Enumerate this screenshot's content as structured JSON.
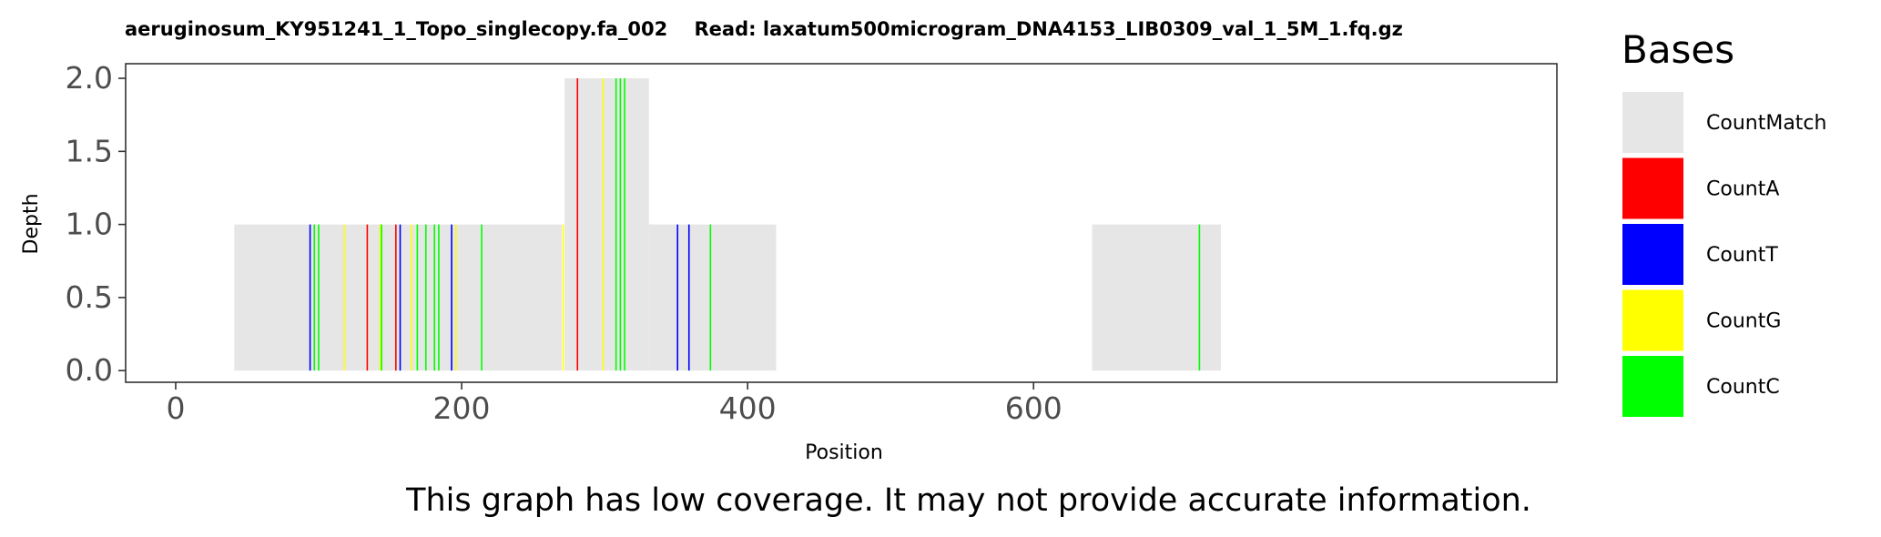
{
  "chart_data": {
    "type": "bar",
    "title": "aeruginosum_KY951241_1_Topo_singlecopy.fa_002    Read: laxatum500microgram_DNA4153_LIB0309_val_1_5M_1.fq.gz",
    "xlabel": "Position",
    "ylabel": "Depth",
    "xlim": [
      -35,
      966
    ],
    "ylim": [
      -0.08,
      2.1
    ],
    "x_ticks": [
      0,
      200,
      400,
      600
    ],
    "y_ticks": [
      0.0,
      0.5,
      1.0,
      1.5,
      2.0
    ],
    "x_tick_labels": [
      "0",
      "200",
      "400",
      "600"
    ],
    "y_tick_labels": [
      "0.0",
      "0.5",
      "1.0",
      "1.5",
      "2.0"
    ],
    "grid": false,
    "legend_position": "right",
    "coverage": [
      {
        "start": 41,
        "end": 270,
        "depth": 1
      },
      {
        "start": 272,
        "end": 331,
        "depth": 2
      },
      {
        "start": 331,
        "end": 420,
        "depth": 1
      },
      {
        "start": 641,
        "end": 731,
        "depth": 1
      }
    ],
    "mismatches": [
      {
        "pos": 94,
        "base": "T",
        "depth": 1
      },
      {
        "pos": 97,
        "base": "C",
        "depth": 1
      },
      {
        "pos": 100,
        "base": "C",
        "depth": 1
      },
      {
        "pos": 118,
        "base": "G",
        "depth": 1
      },
      {
        "pos": 134,
        "base": "A",
        "depth": 1
      },
      {
        "pos": 143,
        "base": "G",
        "depth": 1
      },
      {
        "pos": 144,
        "base": "C",
        "depth": 1
      },
      {
        "pos": 154,
        "base": "A",
        "depth": 1
      },
      {
        "pos": 157,
        "base": "T",
        "depth": 1
      },
      {
        "pos": 165,
        "base": "G",
        "depth": 1
      },
      {
        "pos": 169,
        "base": "C",
        "depth": 1
      },
      {
        "pos": 175,
        "base": "C",
        "depth": 1
      },
      {
        "pos": 181,
        "base": "C",
        "depth": 1
      },
      {
        "pos": 184,
        "base": "C",
        "depth": 1
      },
      {
        "pos": 193,
        "base": "T",
        "depth": 1
      },
      {
        "pos": 196,
        "base": "G",
        "depth": 1
      },
      {
        "pos": 214,
        "base": "C",
        "depth": 1
      },
      {
        "pos": 271,
        "base": "G",
        "depth": 1
      },
      {
        "pos": 281,
        "base": "A",
        "depth": 2
      },
      {
        "pos": 299,
        "base": "G",
        "depth": 2
      },
      {
        "pos": 308,
        "base": "C",
        "depth": 2
      },
      {
        "pos": 311,
        "base": "C",
        "depth": 2
      },
      {
        "pos": 314,
        "base": "C",
        "depth": 2
      },
      {
        "pos": 351,
        "base": "T",
        "depth": 1
      },
      {
        "pos": 359,
        "base": "T",
        "depth": 1
      },
      {
        "pos": 374,
        "base": "C",
        "depth": 1
      },
      {
        "pos": 716,
        "base": "C",
        "depth": 1
      }
    ],
    "legend": {
      "title": "Bases",
      "entries": [
        {
          "key": "Match",
          "label": "CountMatch",
          "color": "#e6e6e6"
        },
        {
          "key": "A",
          "label": "CountA",
          "color": "#ff0000"
        },
        {
          "key": "T",
          "label": "CountT",
          "color": "#0000ff"
        },
        {
          "key": "G",
          "label": "CountG",
          "color": "#ffff00"
        },
        {
          "key": "C",
          "label": "CountC",
          "color": "#00ff00"
        }
      ]
    }
  },
  "footer_note": "This graph has low coverage. It may not provide accurate information."
}
